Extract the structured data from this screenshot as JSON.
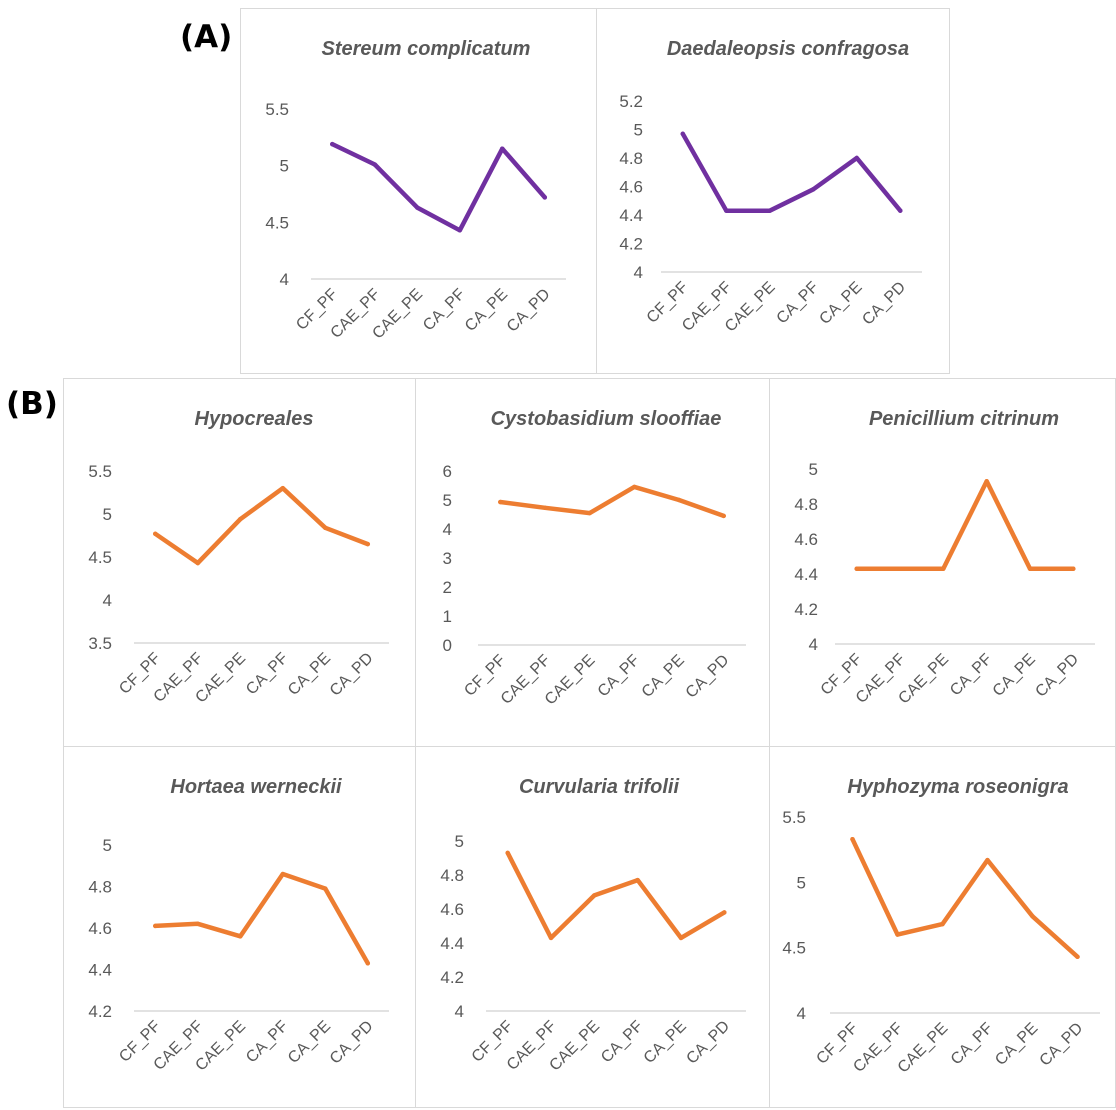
{
  "panels": {
    "a_label": "(A)",
    "b_label": "(B)"
  },
  "chart_data": [
    {
      "type": "line",
      "panel": "(A)",
      "title": "Stereum complicatum",
      "categories": [
        "CF_PF",
        "CAE_PF",
        "CAE_PE",
        "CA_PF",
        "CA_PE",
        "CA_PD"
      ],
      "values": [
        5.19,
        5.01,
        4.63,
        4.43,
        5.15,
        4.72
      ],
      "ylim": [
        4,
        5.5
      ],
      "yticks": [
        4,
        4.5,
        5,
        5.5
      ],
      "ytick_labels": [
        "4",
        "4.5",
        "5",
        "5.5"
      ],
      "color": "#7030a0"
    },
    {
      "type": "line",
      "panel": "(A)",
      "title": "Daedaleopsis confragosa",
      "categories": [
        "CF_PF",
        "CAE_PF",
        "CAE_PE",
        "CA_PF",
        "CA_PE",
        "CA_PD"
      ],
      "values": [
        4.97,
        4.43,
        4.43,
        4.58,
        4.8,
        4.43
      ],
      "ylim": [
        4,
        5.2
      ],
      "yticks": [
        4,
        4.2,
        4.4,
        4.6,
        4.8,
        5,
        5.2
      ],
      "ytick_labels": [
        "4",
        "4.2",
        "4.4",
        "4.6",
        "4.8",
        "5",
        "5.2"
      ],
      "color": "#7030a0"
    },
    {
      "type": "line",
      "panel": "(B)",
      "title": "Hypocreales",
      "categories": [
        "CF_PF",
        "CAE_PF",
        "CAE_PE",
        "CA_PF",
        "CA_PE",
        "CA_PD"
      ],
      "values": [
        4.77,
        4.43,
        4.94,
        5.3,
        4.84,
        4.65
      ],
      "ylim": [
        3.5,
        5.5
      ],
      "yticks": [
        3.5,
        4,
        4.5,
        5,
        5.5
      ],
      "ytick_labels": [
        "3.5",
        "4",
        "4.5",
        "5",
        "5.5"
      ],
      "color": "#ed7d31"
    },
    {
      "type": "line",
      "panel": "(B)",
      "title": "Cystobasidium slooffiae",
      "categories": [
        "CF_PF",
        "CAE_PF",
        "CAE_PE",
        "CA_PF",
        "CA_PE",
        "CA_PD"
      ],
      "values": [
        4.93,
        4.73,
        4.55,
        5.45,
        5.0,
        4.45
      ],
      "ylim": [
        0,
        6
      ],
      "yticks": [
        0,
        1,
        2,
        3,
        4,
        5,
        6
      ],
      "ytick_labels": [
        "0",
        "1",
        "2",
        "3",
        "4",
        "5",
        "6"
      ],
      "color": "#ed7d31"
    },
    {
      "type": "line",
      "panel": "(B)",
      "title": "Penicillium citrinum",
      "categories": [
        "CF_PF",
        "CAE_PF",
        "CAE_PE",
        "CA_PF",
        "CA_PE",
        "CA_PD"
      ],
      "values": [
        4.43,
        4.43,
        4.43,
        4.93,
        4.43,
        4.43
      ],
      "ylim": [
        4,
        5
      ],
      "yticks": [
        4,
        4.2,
        4.4,
        4.6,
        4.8,
        5
      ],
      "ytick_labels": [
        "4",
        "4.2",
        "4.4",
        "4.6",
        "4.8",
        "5"
      ],
      "color": "#ed7d31"
    },
    {
      "type": "line",
      "panel": "(B)",
      "title": "Hortaea werneckii",
      "categories": [
        "CF_PF",
        "CAE_PF",
        "CAE_PE",
        "CA_PF",
        "CA_PE",
        "CA_PD"
      ],
      "values": [
        4.61,
        4.62,
        4.56,
        4.86,
        4.79,
        4.43
      ],
      "ylim": [
        4.2,
        5
      ],
      "yticks": [
        4.2,
        4.4,
        4.6,
        4.8,
        5
      ],
      "ytick_labels": [
        "4.2",
        "4.4",
        "4.6",
        "4.8",
        "5"
      ],
      "color": "#ed7d31"
    },
    {
      "type": "line",
      "panel": "(B)",
      "title": "Curvularia trifolii",
      "categories": [
        "CF_PF",
        "CAE_PF",
        "CAE_PE",
        "CA_PF",
        "CA_PE",
        "CA_PD"
      ],
      "values": [
        4.93,
        4.43,
        4.68,
        4.77,
        4.43,
        4.58
      ],
      "ylim": [
        4,
        5
      ],
      "yticks": [
        4,
        4.2,
        4.4,
        4.6,
        4.8,
        5
      ],
      "ytick_labels": [
        "4",
        "4.2",
        "4.4",
        "4.6",
        "4.8",
        "5"
      ],
      "color": "#ed7d31"
    },
    {
      "type": "line",
      "panel": "(B)",
      "title": "Hyphozyma roseonigra",
      "categories": [
        "CF_PF",
        "CAE_PF",
        "CAE_PE",
        "CA_PF",
        "CA_PE",
        "CA_PD"
      ],
      "values": [
        5.33,
        4.6,
        4.68,
        5.17,
        4.74,
        4.43
      ],
      "ylim": [
        4,
        5.5
      ],
      "yticks": [
        4,
        4.5,
        5,
        5.5
      ],
      "ytick_labels": [
        "4",
        "4.5",
        "5",
        "5.5"
      ],
      "color": "#ed7d31"
    }
  ]
}
